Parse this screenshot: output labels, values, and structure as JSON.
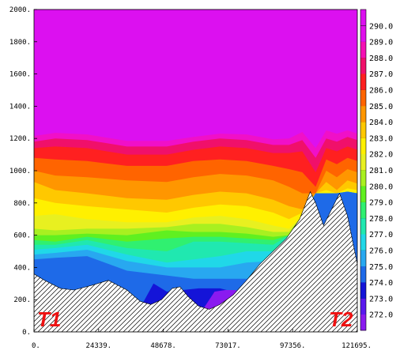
{
  "chart_data": {
    "type": "heatmap",
    "title": "",
    "xlabel": "",
    "ylabel": "",
    "xlim": [
      0,
      121695
    ],
    "ylim": [
      0,
      2000
    ],
    "x_ticks": [
      "0.",
      "24339.",
      "48678.",
      "73017.",
      "97356.",
      "121695."
    ],
    "y_ticks": [
      "0.",
      "200.",
      "400.",
      "600.",
      "800.",
      "1000.",
      "1200.",
      "1400.",
      "1600.",
      "1800.",
      "2000."
    ],
    "colorbar": {
      "labels": [
        "272.0",
        "273.0",
        "274.0",
        "275.0",
        "276.0",
        "277.0",
        "278.0",
        "279.0",
        "280.0",
        "281.0",
        "282.0",
        "283.0",
        "284.0",
        "285.0",
        "286.0",
        "287.0",
        "288.0",
        "289.0",
        "290.0"
      ],
      "colors": [
        "#8a1af0",
        "#5a18ee",
        "#1414d8",
        "#1e6ae8",
        "#28a8f0",
        "#20d8e8",
        "#20e8b0",
        "#30f070",
        "#60f020",
        "#a8f020",
        "#e8f020",
        "#fff000",
        "#ffc800",
        "#ff9600",
        "#ff6400",
        "#ff2020",
        "#f0106a",
        "#f410b4",
        "#e010ec"
      ],
      "top_color": "#dc10f0"
    },
    "contours": [
      {
        "level": "290.0",
        "color": "#dc10f0",
        "x": [
          0,
          121695
        ],
        "y": [
          2000,
          2000
        ]
      },
      {
        "level": "289.0",
        "color": "#f010c8",
        "x": [
          0,
          8000,
          20000,
          35000,
          50000,
          60000,
          70000,
          80000,
          90000,
          96000,
          101000,
          106000,
          110000,
          114000,
          118000,
          121695
        ],
        "y": [
          1215,
          1235,
          1225,
          1185,
          1185,
          1210,
          1230,
          1225,
          1195,
          1200,
          1240,
          1140,
          1250,
          1230,
          1250,
          1230
        ]
      },
      {
        "level": "288.0",
        "color": "#f0106a",
        "x": [
          0,
          8000,
          20000,
          35000,
          50000,
          60000,
          70000,
          80000,
          90000,
          96000,
          101000,
          106000,
          110000,
          114000,
          118000,
          121695
        ],
        "y": [
          1180,
          1200,
          1190,
          1150,
          1150,
          1180,
          1200,
          1190,
          1160,
          1160,
          1190,
          1080,
          1200,
          1180,
          1210,
          1190
        ]
      },
      {
        "level": "287.0",
        "color": "#ff2020",
        "x": [
          0,
          8000,
          20000,
          35000,
          50000,
          60000,
          70000,
          80000,
          90000,
          96000,
          101000,
          106000,
          110000,
          114000,
          118000,
          121695
        ],
        "y": [
          1140,
          1150,
          1140,
          1100,
          1100,
          1130,
          1150,
          1140,
          1110,
          1110,
          1120,
          990,
          1140,
          1120,
          1150,
          1130
        ]
      },
      {
        "level": "286.0",
        "color": "#ff6400",
        "x": [
          0,
          8000,
          20000,
          35000,
          50000,
          60000,
          70000,
          80000,
          90000,
          96000,
          101000,
          106000,
          110000,
          114000,
          118000,
          121695
        ],
        "y": [
          1080,
          1070,
          1060,
          1030,
          1030,
          1060,
          1070,
          1060,
          1030,
          1010,
          990,
          900,
          1070,
          1040,
          1080,
          1060
        ]
      },
      {
        "level": "285.0",
        "color": "#ff9600",
        "x": [
          0,
          8000,
          20000,
          35000,
          50000,
          60000,
          70000,
          80000,
          90000,
          96000,
          101000,
          106000,
          110000,
          114000,
          118000,
          121695
        ],
        "y": [
          1000,
          970,
          960,
          940,
          930,
          960,
          980,
          970,
          940,
          900,
          860,
          860,
          1000,
          960,
          1010,
          990
        ]
      },
      {
        "level": "284.0",
        "color": "#ffc800",
        "x": [
          0,
          8000,
          20000,
          35000,
          50000,
          60000,
          70000,
          80000,
          90000,
          96000,
          101000,
          106000,
          110000,
          114000,
          118000,
          121695
        ],
        "y": [
          930,
          880,
          860,
          830,
          820,
          850,
          870,
          860,
          820,
          780,
          760,
          860,
          930,
          880,
          940,
          920
        ]
      },
      {
        "level": "283.0",
        "color": "#fff000",
        "x": [
          0,
          8000,
          20000,
          35000,
          50000,
          60000,
          70000,
          80000,
          90000,
          96000,
          101000,
          106000,
          110000,
          114000,
          118000,
          121695
        ],
        "y": [
          830,
          800,
          780,
          760,
          740,
          770,
          790,
          780,
          740,
          700,
          740,
          860,
          880,
          860,
          890,
          880
        ]
      },
      {
        "level": "282.0",
        "color": "#e8f020",
        "x": [
          0,
          8000,
          20000,
          35000,
          50000,
          60000,
          70000,
          80000,
          90000,
          96000,
          101000,
          106000,
          110000,
          114000,
          118000,
          121695
        ],
        "y": [
          720,
          730,
          700,
          680,
          680,
          710,
          720,
          700,
          660,
          640,
          720,
          860,
          860,
          860,
          870,
          860
        ]
      },
      {
        "level": "281.0",
        "color": "#a8f020",
        "x": [
          0,
          8000,
          20000,
          35000,
          50000,
          60000,
          70000,
          80000,
          90000,
          96000,
          101000,
          106000,
          110000,
          114000,
          118000,
          121695
        ],
        "y": [
          640,
          630,
          640,
          640,
          650,
          670,
          670,
          650,
          620,
          620,
          720,
          860,
          860,
          860,
          870,
          860
        ]
      },
      {
        "level": "280.0",
        "color": "#60f020",
        "x": [
          0,
          8000,
          20000,
          35000,
          50000,
          60000,
          70000,
          80000,
          90000,
          96000,
          101000,
          106000,
          110000,
          114000,
          118000,
          121695
        ],
        "y": [
          600,
          600,
          610,
          600,
          630,
          620,
          620,
          610,
          590,
          600,
          720,
          860,
          860,
          860,
          870,
          860
        ]
      },
      {
        "level": "279.0",
        "color": "#30f070",
        "x": [
          0,
          8000,
          20000,
          35000,
          50000,
          60000,
          70000,
          80000,
          90000,
          96000,
          101000,
          106000,
          110000,
          114000,
          118000,
          121695
        ],
        "y": [
          570,
          560,
          590,
          560,
          580,
          590,
          590,
          580,
          570,
          600,
          720,
          860,
          860,
          860,
          870,
          860
        ]
      },
      {
        "level": "278.0",
        "color": "#20e8b0",
        "x": [
          0,
          8000,
          20000,
          35000,
          50000,
          60000,
          70000,
          80000,
          90000,
          96000,
          101000,
          106000,
          110000,
          114000,
          118000,
          121695
        ],
        "y": [
          540,
          540,
          570,
          520,
          500,
          560,
          560,
          550,
          540,
          600,
          720,
          860,
          860,
          860,
          870,
          860
        ]
      },
      {
        "level": "277.0",
        "color": "#20d8e8",
        "x": [
          0,
          8000,
          20000,
          35000,
          50000,
          60000,
          70000,
          80000,
          90000,
          96000,
          101000,
          106000,
          110000,
          114000,
          118000,
          121695
        ],
        "y": [
          510,
          520,
          540,
          480,
          430,
          450,
          470,
          500,
          500,
          600,
          720,
          860,
          860,
          860,
          870,
          860
        ]
      },
      {
        "level": "276.0",
        "color": "#28a8f0",
        "x": [
          0,
          8000,
          20000,
          35000,
          50000,
          60000,
          70000,
          80000,
          90000,
          96000,
          101000,
          106000,
          110000,
          114000,
          118000,
          121695
        ],
        "y": [
          480,
          490,
          510,
          440,
          400,
          400,
          400,
          430,
          440,
          600,
          720,
          860,
          860,
          860,
          870,
          860
        ]
      },
      {
        "level": "275.0",
        "color": "#1e6ae8",
        "x": [
          0,
          8000,
          20000,
          35000,
          50000,
          60000,
          70000,
          80000,
          90000,
          96000,
          101000,
          106000,
          110000,
          114000,
          118000,
          121695
        ],
        "y": [
          450,
          460,
          470,
          380,
          350,
          330,
          330,
          330,
          360,
          600,
          720,
          860,
          860,
          860,
          870,
          860
        ]
      },
      {
        "level": "274.0",
        "color": "#1414d8",
        "x": [
          0,
          15000,
          25000,
          35000,
          45000,
          50000,
          56000,
          62000,
          70000,
          75000,
          80000,
          85000,
          121695
        ],
        "y": [
          0,
          0,
          0,
          0,
          300,
          250,
          260,
          270,
          270,
          250,
          240,
          0,
          0
        ]
      },
      {
        "level": "273.0",
        "color": "#8a1af0",
        "x": [
          60000,
          64000,
          68000,
          72000,
          76000,
          80000,
          84000
        ],
        "y": [
          0,
          150,
          250,
          260,
          260,
          200,
          0
        ]
      }
    ],
    "terrain": {
      "x": [
        0,
        4000,
        10000,
        15000,
        22000,
        28000,
        35000,
        40000,
        44000,
        48000,
        52000,
        55000,
        58000,
        62000,
        66000,
        70000,
        75000,
        80000,
        85000,
        90000,
        95000,
        100000,
        104000,
        106000,
        109000,
        112000,
        115000,
        118000,
        121695
      ],
      "y": [
        360,
        320,
        270,
        260,
        290,
        320,
        260,
        190,
        170,
        200,
        270,
        280,
        220,
        160,
        140,
        170,
        230,
        320,
        420,
        500,
        580,
        700,
        870,
        800,
        660,
        760,
        860,
        720,
        420
      ]
    },
    "annotations": [
      {
        "text": "T1",
        "x": 1200,
        "y": 35
      },
      {
        "text": "T2",
        "x": 111000,
        "y": 35
      }
    ]
  }
}
